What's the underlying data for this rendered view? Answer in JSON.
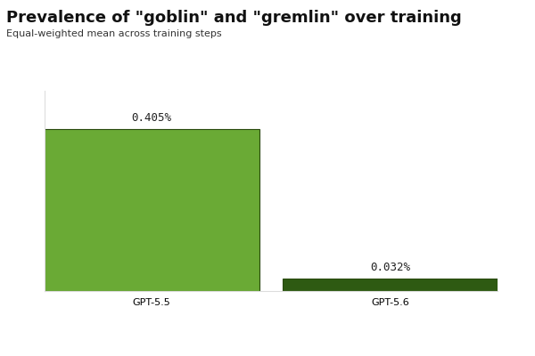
{
  "chart_data": {
    "type": "bar",
    "title": "Prevalence of \"goblin\" and \"gremlin\" over training",
    "subtitle": "Equal-weighted mean across training steps",
    "categories": [
      "GPT-5.5",
      "GPT-5.6"
    ],
    "values": [
      0.405,
      0.032
    ],
    "value_labels": [
      "0.405%",
      "0.032%"
    ],
    "colors": [
      "#6aaa35",
      "#2e5a12"
    ],
    "ylim": [
      0,
      0.5
    ],
    "yticks": [],
    "data_labels": true,
    "tick_labels": "x",
    "grid": false
  }
}
